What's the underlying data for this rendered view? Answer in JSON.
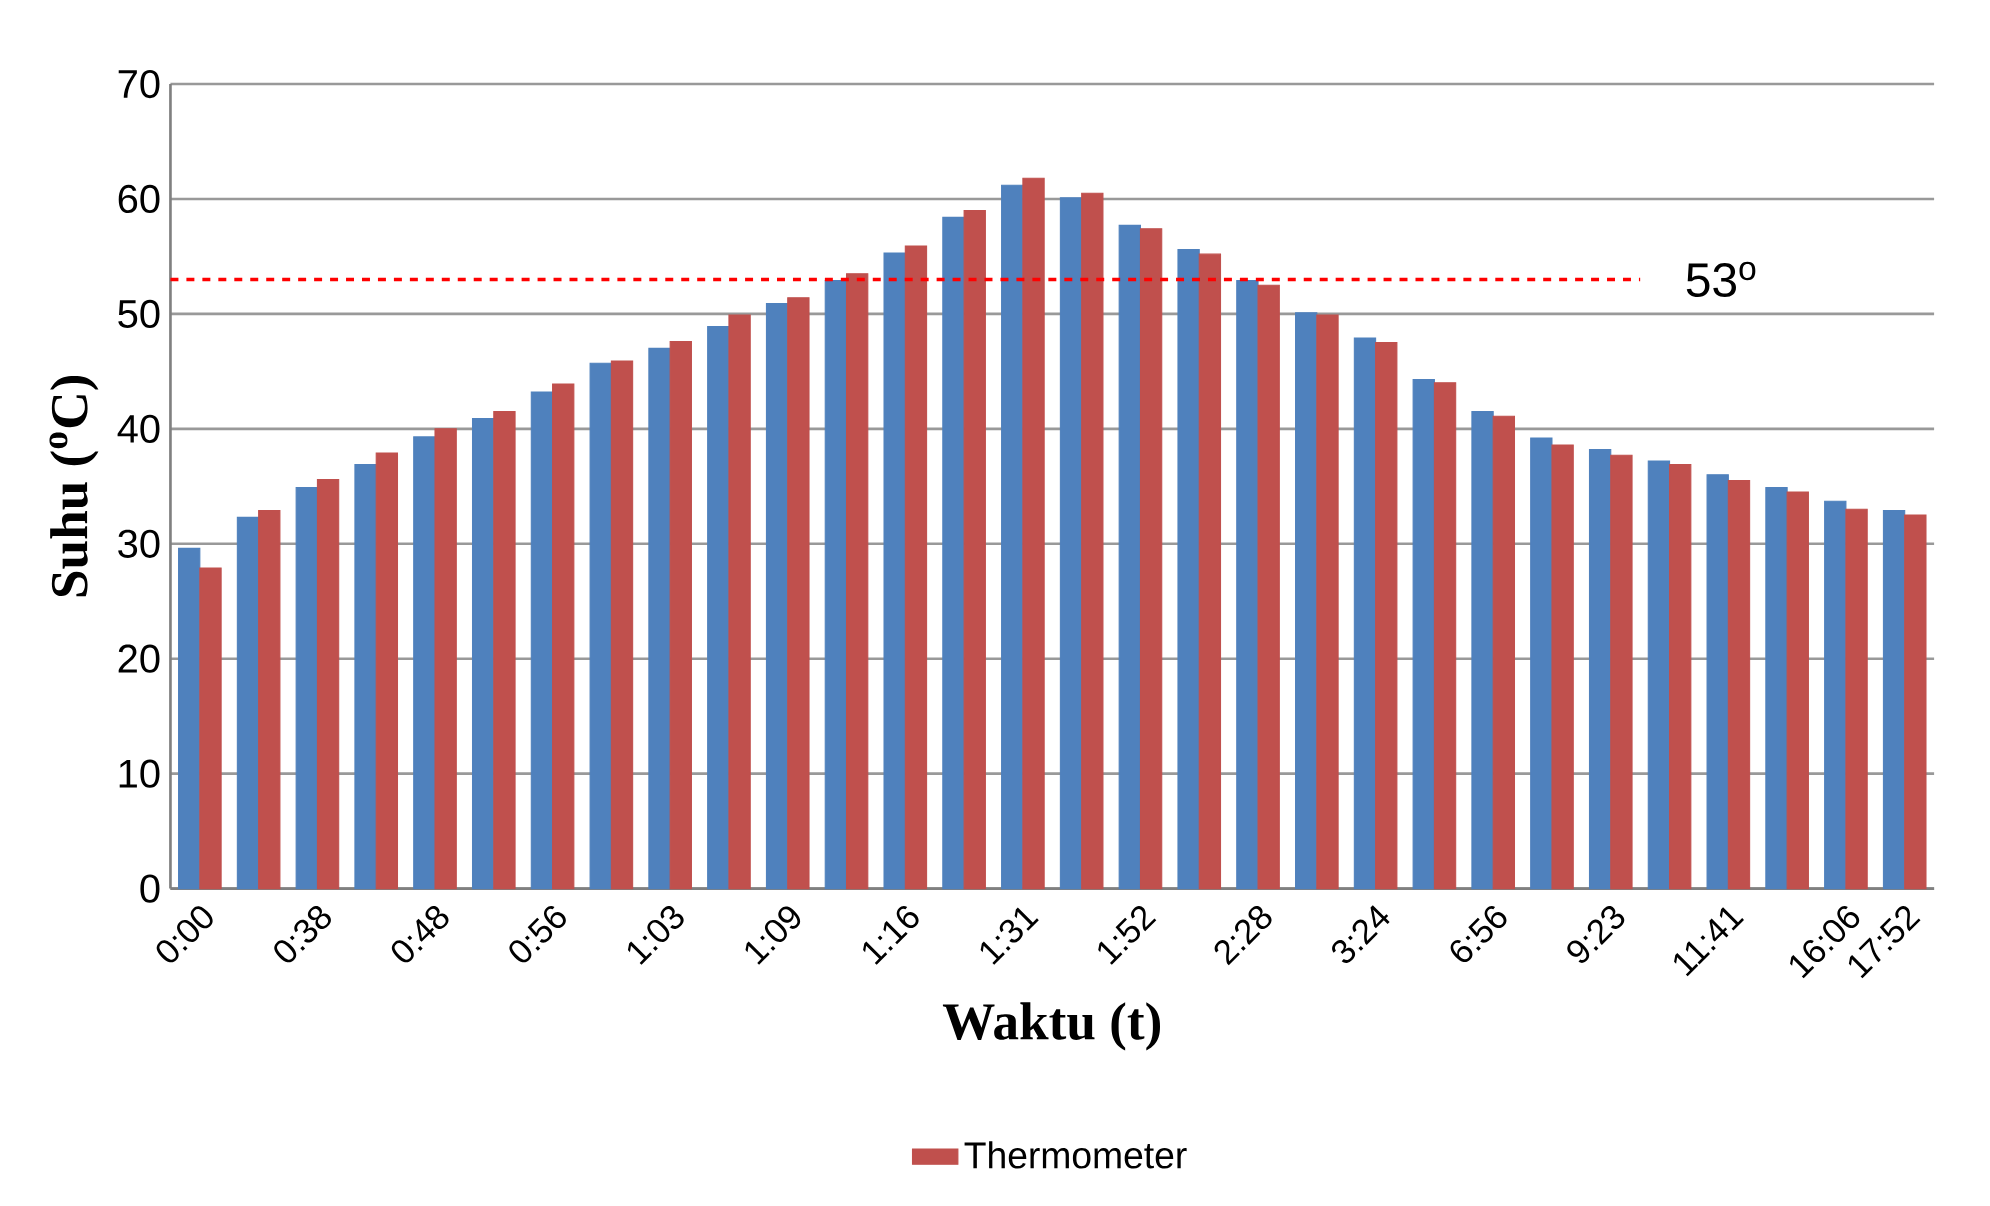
{
  "chart_data": {
    "type": "bar",
    "xlabel": "Waktu (t)",
    "ylabel": "Suhu ($^{o}$C)",
    "categories": [
      "0:00",
      null,
      "0:38",
      null,
      "0:48",
      null,
      "0:56",
      null,
      "1:03",
      null,
      "1:09",
      null,
      "1:16",
      null,
      "1:31",
      null,
      "1:52",
      null,
      "2:28",
      null,
      "3:24",
      null,
      "6:56",
      null,
      "9:23",
      null,
      "11:41",
      null,
      "16:06",
      "17:52"
    ],
    "series": [
      {
        "color": "#4f81bd",
        "values": [
          29.6,
          32.3,
          34.9,
          36.9,
          39.3,
          40.9,
          43.2,
          45.7,
          47.0,
          48.9,
          50.9,
          52.9,
          55.3,
          58.4,
          61.2,
          60.1,
          57.7,
          55.6,
          52.9,
          50.1,
          47.9,
          44.3,
          41.5,
          39.2,
          38.2,
          37.2,
          36.0,
          34.9,
          33.7,
          32.9
        ]
      },
      {
        "name": "Thermometer",
        "color": "#c0504d",
        "values": [
          27.9,
          32.9,
          35.6,
          37.9,
          40.0,
          41.5,
          43.9,
          45.9,
          47.6,
          49.9,
          51.4,
          53.5,
          55.9,
          59.0,
          61.8,
          60.5,
          57.4,
          55.2,
          52.5,
          49.9,
          47.5,
          44.0,
          41.1,
          38.6,
          37.7,
          36.9,
          35.5,
          34.5,
          33.0,
          32.5
        ]
      }
    ],
    "ylim": [
      0,
      70
    ],
    "yticks": [
      0,
      10,
      20,
      30,
      40,
      50,
      60,
      70
    ],
    "grid": "y",
    "legend": "bottom",
    "ref_lines": [
      {
        "axis": "y",
        "value": 53,
        "label": "53$^{o}$",
        "color": "#ff0000",
        "line_style": "dashed"
      }
    ]
  }
}
